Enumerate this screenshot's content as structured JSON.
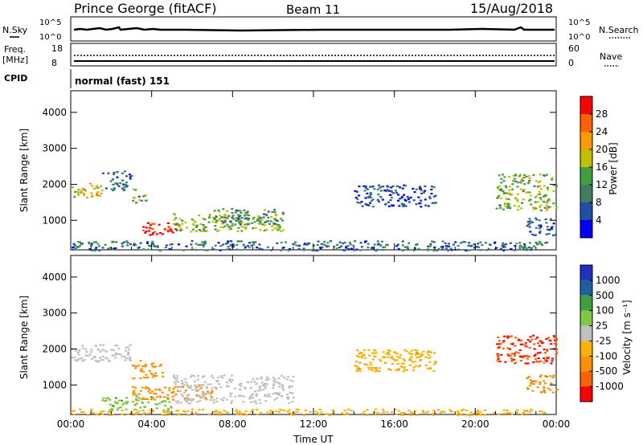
{
  "header": {
    "station": "Prince George (fitACF)",
    "beam": "Beam 11",
    "date": "15/Aug/2018"
  },
  "top_panels": {
    "nsky_label": "N.Sky",
    "nsky_ticks": [
      "10^5",
      "10^0"
    ],
    "nsearch_label": "N.Search",
    "nsearch_ticks": [
      "10^5",
      "10^0"
    ],
    "freq_label": "Freq.",
    "freq_unit": "[MHz]",
    "freq_ticks": [
      "18",
      "8"
    ],
    "nave_label": "Nave",
    "nave_ticks": [
      "60",
      "0"
    ],
    "cpid_label": "CPID",
    "cpid_value": "normal (fast) 151"
  },
  "colors": {
    "power": [
      "#0000ff",
      "#1f4fa6",
      "#3f7f5f",
      "#40a040",
      "#c0c000",
      "#ff9a00",
      "#ff6000",
      "#ff0000"
    ],
    "velocity": [
      "#1f2fc0",
      "#1f5fa0",
      "#3fa040",
      "#80c840",
      "#c0c0c0",
      "#ffb000",
      "#ff9000",
      "#ff6000",
      "#ff0000"
    ]
  },
  "chart_data": [
    {
      "type": "heatmap",
      "title": "",
      "ylabel": "Slant Range [km]",
      "xlabel": "",
      "x_ticks": [
        "00:00",
        "04:00",
        "08:00",
        "12:00",
        "16:00",
        "20:00",
        "00:00"
      ],
      "y_ticks": [
        1000,
        2000,
        3000,
        4000
      ],
      "xlim": [
        0,
        24
      ],
      "ylim": [
        180,
        4600
      ],
      "colorbar": {
        "label": "Power [dB]",
        "ticks": [
          4,
          8,
          12,
          16,
          20,
          24,
          28
        ],
        "range": [
          0,
          32
        ]
      },
      "regions": [
        {
          "t": [
            0.0,
            1.5
          ],
          "r": [
            1650,
            2050
          ],
          "value": 20
        },
        {
          "t": [
            1.5,
            3.0
          ],
          "r": [
            1850,
            2400
          ],
          "value": 8
        },
        {
          "t": [
            3.0,
            3.8
          ],
          "r": [
            1400,
            1900
          ],
          "value": 16
        },
        {
          "t": [
            3.5,
            5.2
          ],
          "r": [
            600,
            950
          ],
          "value": 30
        },
        {
          "t": [
            5.0,
            10.5
          ],
          "r": [
            700,
            1200
          ],
          "value": 16
        },
        {
          "t": [
            7.0,
            10.5
          ],
          "r": [
            900,
            1350
          ],
          "value": 12
        },
        {
          "t": [
            0.0,
            23.5
          ],
          "r": [
            180,
            450
          ],
          "value": 8
        },
        {
          "t": [
            14.0,
            18.0
          ],
          "r": [
            1400,
            2000
          ],
          "value": 6
        },
        {
          "t": [
            21.0,
            24.0
          ],
          "r": [
            1300,
            2300
          ],
          "value": 16
        },
        {
          "t": [
            22.5,
            24.0
          ],
          "r": [
            600,
            1100
          ],
          "value": 6
        }
      ]
    },
    {
      "type": "heatmap",
      "title": "",
      "ylabel": "Slant Range [km]",
      "xlabel": "Time UT",
      "x_ticks": [
        "00:00",
        "04:00",
        "08:00",
        "12:00",
        "16:00",
        "20:00",
        "00:00"
      ],
      "y_ticks": [
        1000,
        2000,
        3000,
        4000
      ],
      "xlim": [
        0,
        24
      ],
      "ylim": [
        180,
        4600
      ],
      "colorbar": {
        "label": "Velocity [m s⁻¹]",
        "ticks": [
          "1000",
          "500",
          "100",
          "25",
          "-25",
          "-100",
          "-500",
          "-1000"
        ]
      },
      "regions": [
        {
          "t": [
            0.0,
            3.0
          ],
          "r": [
            1650,
            2150
          ],
          "value": 0
        },
        {
          "t": [
            3.0,
            4.5
          ],
          "r": [
            1200,
            1700
          ],
          "value": -300
        },
        {
          "t": [
            3.0,
            7.0
          ],
          "r": [
            600,
            1000
          ],
          "value": -200
        },
        {
          "t": [
            1.5,
            5.0
          ],
          "r": [
            300,
            700
          ],
          "value": 80
        },
        {
          "t": [
            5.0,
            11.0
          ],
          "r": [
            500,
            1300
          ],
          "value": 0
        },
        {
          "t": [
            0.0,
            23.5
          ],
          "r": [
            180,
            350
          ],
          "value": -50
        },
        {
          "t": [
            14.0,
            18.0
          ],
          "r": [
            1400,
            2000
          ],
          "value": -80
        },
        {
          "t": [
            21.0,
            24.0
          ],
          "r": [
            1600,
            2400
          ],
          "value": -1000
        },
        {
          "t": [
            22.5,
            24.0
          ],
          "r": [
            800,
            1300
          ],
          "value": -400
        }
      ]
    }
  ]
}
